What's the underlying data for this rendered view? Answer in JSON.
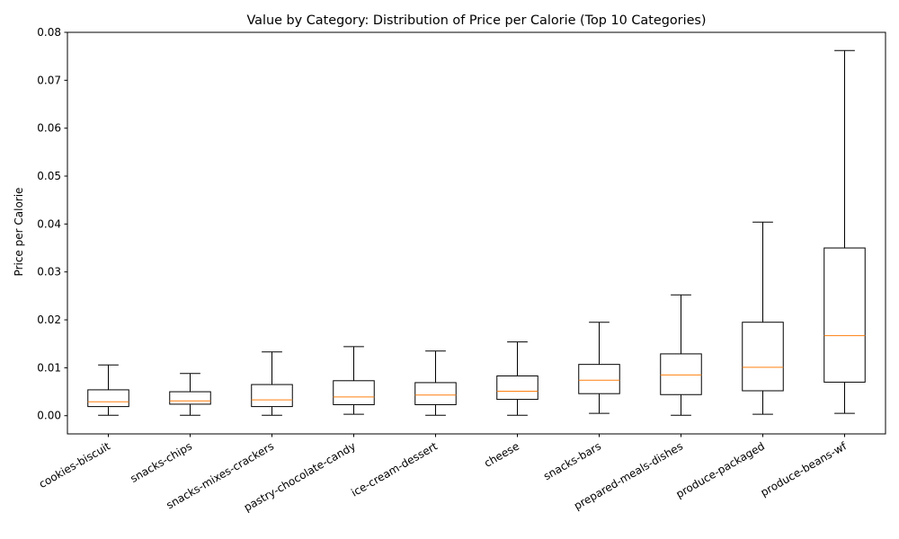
{
  "chart_data": {
    "type": "box",
    "title": "Value by Category: Distribution of Price per Calorie (Top 10 Categories)",
    "xlabel": "",
    "ylabel": "Price per Calorie",
    "ylim": [
      -0.0038,
      0.08
    ],
    "yticks": [
      0.0,
      0.01,
      0.02,
      0.03,
      0.04,
      0.05,
      0.06,
      0.07,
      0.08
    ],
    "ytick_labels": [
      "0.00",
      "0.01",
      "0.02",
      "0.03",
      "0.04",
      "0.05",
      "0.06",
      "0.07",
      "0.08"
    ],
    "grid": false,
    "legend": "none",
    "colors": {
      "box": "#000000",
      "median": "#ff7f0e",
      "background": "#ffffff"
    },
    "categories": [
      "cookies-biscuit",
      "snacks-chips",
      "snacks-mixes-crackers",
      "pastry-chocolate-candy",
      "ice-cream-dessert",
      "cheese",
      "snacks-bars",
      "prepared-meals-dishes",
      "produce-packaged",
      "produce-beans-wf"
    ],
    "boxes": [
      {
        "whisker_low": 0.0001,
        "q1": 0.0019,
        "median": 0.0029,
        "q3": 0.0054,
        "whisker_high": 0.0106
      },
      {
        "whisker_low": 0.0001,
        "q1": 0.0024,
        "median": 0.0031,
        "q3": 0.005,
        "whisker_high": 0.0088
      },
      {
        "whisker_low": 0.0001,
        "q1": 0.0019,
        "median": 0.0033,
        "q3": 0.0065,
        "whisker_high": 0.0133
      },
      {
        "whisker_low": 0.0003,
        "q1": 0.0023,
        "median": 0.0039,
        "q3": 0.0073,
        "whisker_high": 0.0144
      },
      {
        "whisker_low": 0.0001,
        "q1": 0.0023,
        "median": 0.0043,
        "q3": 0.0069,
        "whisker_high": 0.0135
      },
      {
        "whisker_low": 0.0001,
        "q1": 0.0034,
        "median": 0.0051,
        "q3": 0.0083,
        "whisker_high": 0.0154
      },
      {
        "whisker_low": 0.0005,
        "q1": 0.0046,
        "median": 0.0074,
        "q3": 0.0107,
        "whisker_high": 0.0195
      },
      {
        "whisker_low": 0.0001,
        "q1": 0.0044,
        "median": 0.0085,
        "q3": 0.0129,
        "whisker_high": 0.0252
      },
      {
        "whisker_low": 0.0003,
        "q1": 0.0052,
        "median": 0.0101,
        "q3": 0.0195,
        "whisker_high": 0.0404
      },
      {
        "whisker_low": 0.0005,
        "q1": 0.007,
        "median": 0.0167,
        "q3": 0.035,
        "whisker_high": 0.0762
      }
    ]
  }
}
